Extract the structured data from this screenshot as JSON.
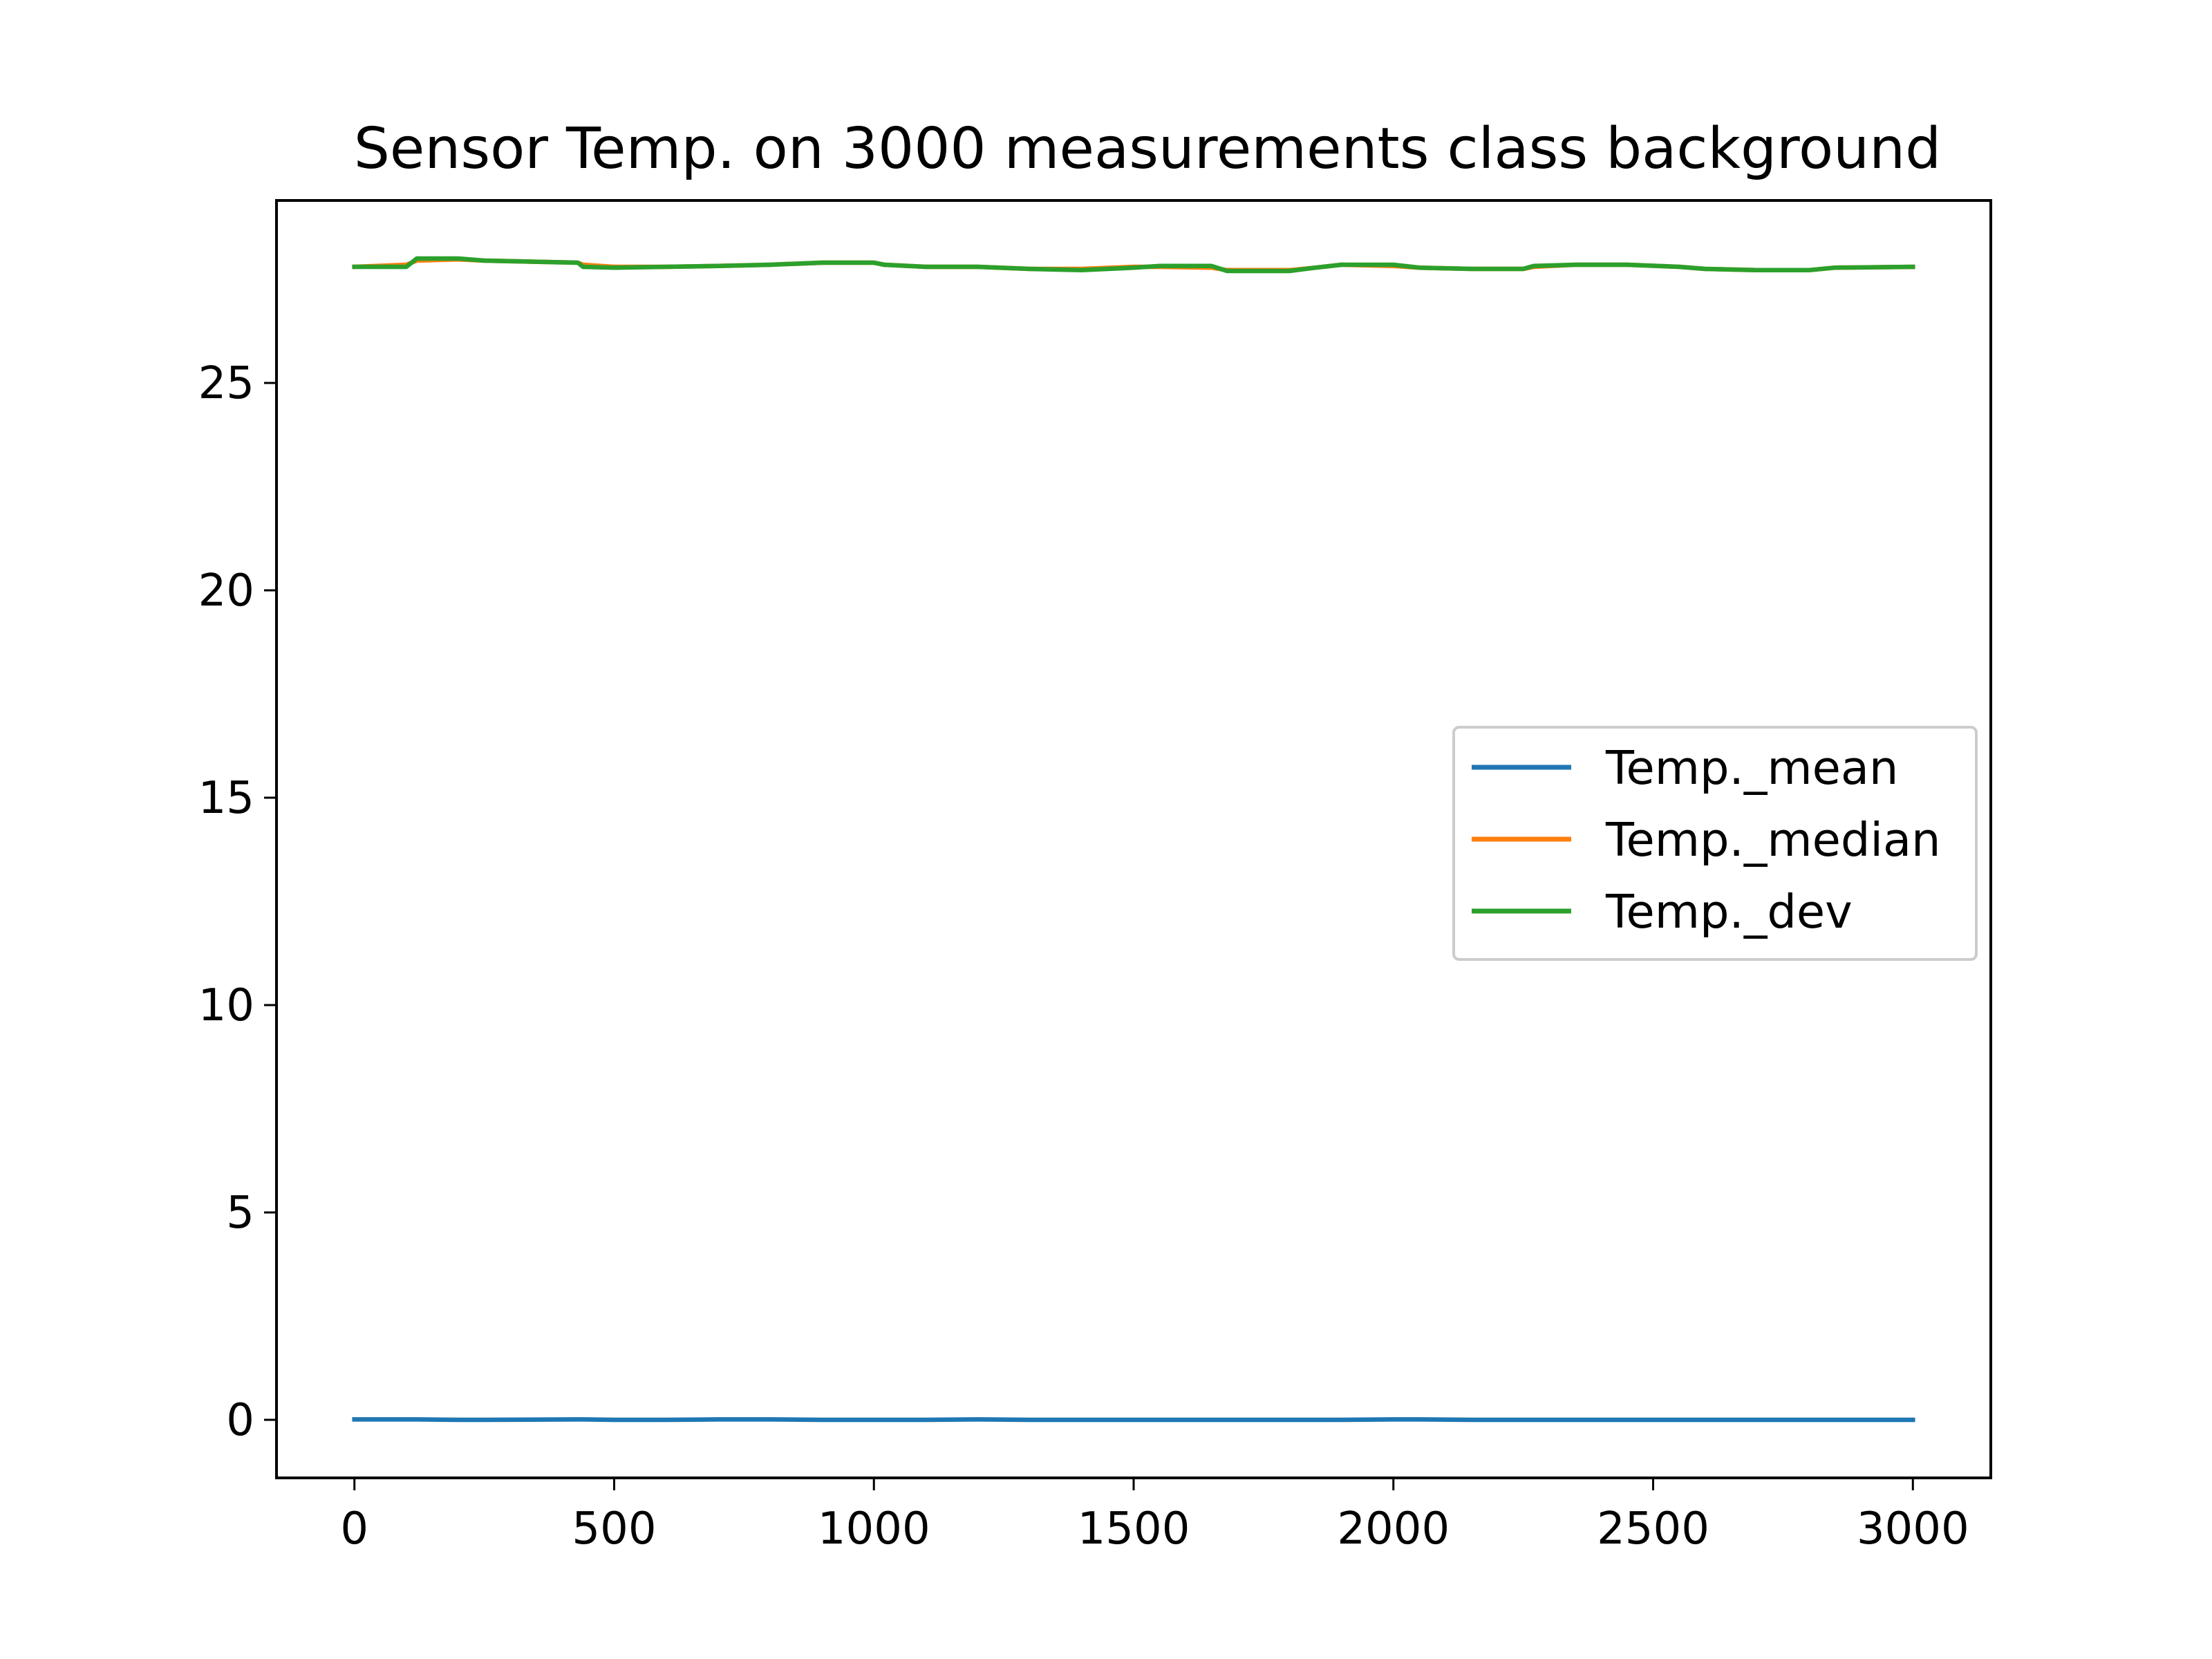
{
  "chart_data": {
    "type": "line",
    "title": "Sensor Temp. on 3000 measurements class background",
    "xlabel": "",
    "ylabel": "",
    "xlim": [
      -150,
      3150
    ],
    "ylim": [
      -1.4,
      29.4
    ],
    "grid": false,
    "legend_position": "center-right",
    "x_ticks": [
      0,
      500,
      1000,
      1500,
      2000,
      2500,
      3000
    ],
    "x_tick_labels": [
      "0",
      "500",
      "1000",
      "1500",
      "2000",
      "2500",
      "3000"
    ],
    "y_ticks": [
      0,
      5,
      10,
      15,
      20,
      25
    ],
    "y_tick_labels": [
      "0",
      "5",
      "10",
      "15",
      "20",
      "25"
    ],
    "x": [
      0,
      100,
      110,
      120,
      200,
      250,
      430,
      440,
      500,
      600,
      700,
      800,
      900,
      1000,
      1020,
      1100,
      1200,
      1300,
      1400,
      1500,
      1550,
      1650,
      1680,
      1800,
      1850,
      1900,
      2000,
      2050,
      2150,
      2250,
      2270,
      2350,
      2450,
      2550,
      2600,
      2700,
      2800,
      2850,
      3000
    ],
    "series": [
      {
        "name": "Temp._mean",
        "color": "#1f77b4",
        "values": [
          0.01,
          0.01,
          0.01,
          0.01,
          0.0,
          0.0,
          0.01,
          0.01,
          0.0,
          0.0,
          0.01,
          0.01,
          0.0,
          0.0,
          0.0,
          0.0,
          0.01,
          0.0,
          0.0,
          0.0,
          0.0,
          0.0,
          0.0,
          0.0,
          0.0,
          0.0,
          0.01,
          0.01,
          0.0,
          0.0,
          0.0,
          0.0,
          0.0,
          0.0,
          0.0,
          0.0,
          0.0,
          0.0,
          0.0
        ]
      },
      {
        "name": "Temp._median",
        "color": "#ff7f0e",
        "values": [
          27.8,
          27.85,
          27.9,
          27.95,
          27.98,
          27.95,
          27.9,
          27.85,
          27.8,
          27.8,
          27.82,
          27.85,
          27.9,
          27.9,
          27.85,
          27.8,
          27.8,
          27.75,
          27.75,
          27.8,
          27.8,
          27.78,
          27.72,
          27.72,
          27.78,
          27.85,
          27.82,
          27.78,
          27.75,
          27.75,
          27.8,
          27.85,
          27.85,
          27.8,
          27.75,
          27.72,
          27.72,
          27.78,
          27.8
        ]
      },
      {
        "name": "Temp._dev",
        "color": "#2ca02c",
        "values": [
          27.8,
          27.8,
          27.9,
          28.0,
          28.0,
          27.95,
          27.9,
          27.8,
          27.78,
          27.8,
          27.82,
          27.85,
          27.9,
          27.9,
          27.85,
          27.8,
          27.8,
          27.75,
          27.72,
          27.78,
          27.82,
          27.82,
          27.7,
          27.7,
          27.78,
          27.85,
          27.85,
          27.78,
          27.75,
          27.75,
          27.82,
          27.85,
          27.85,
          27.8,
          27.75,
          27.72,
          27.72,
          27.78,
          27.8
        ]
      }
    ]
  }
}
